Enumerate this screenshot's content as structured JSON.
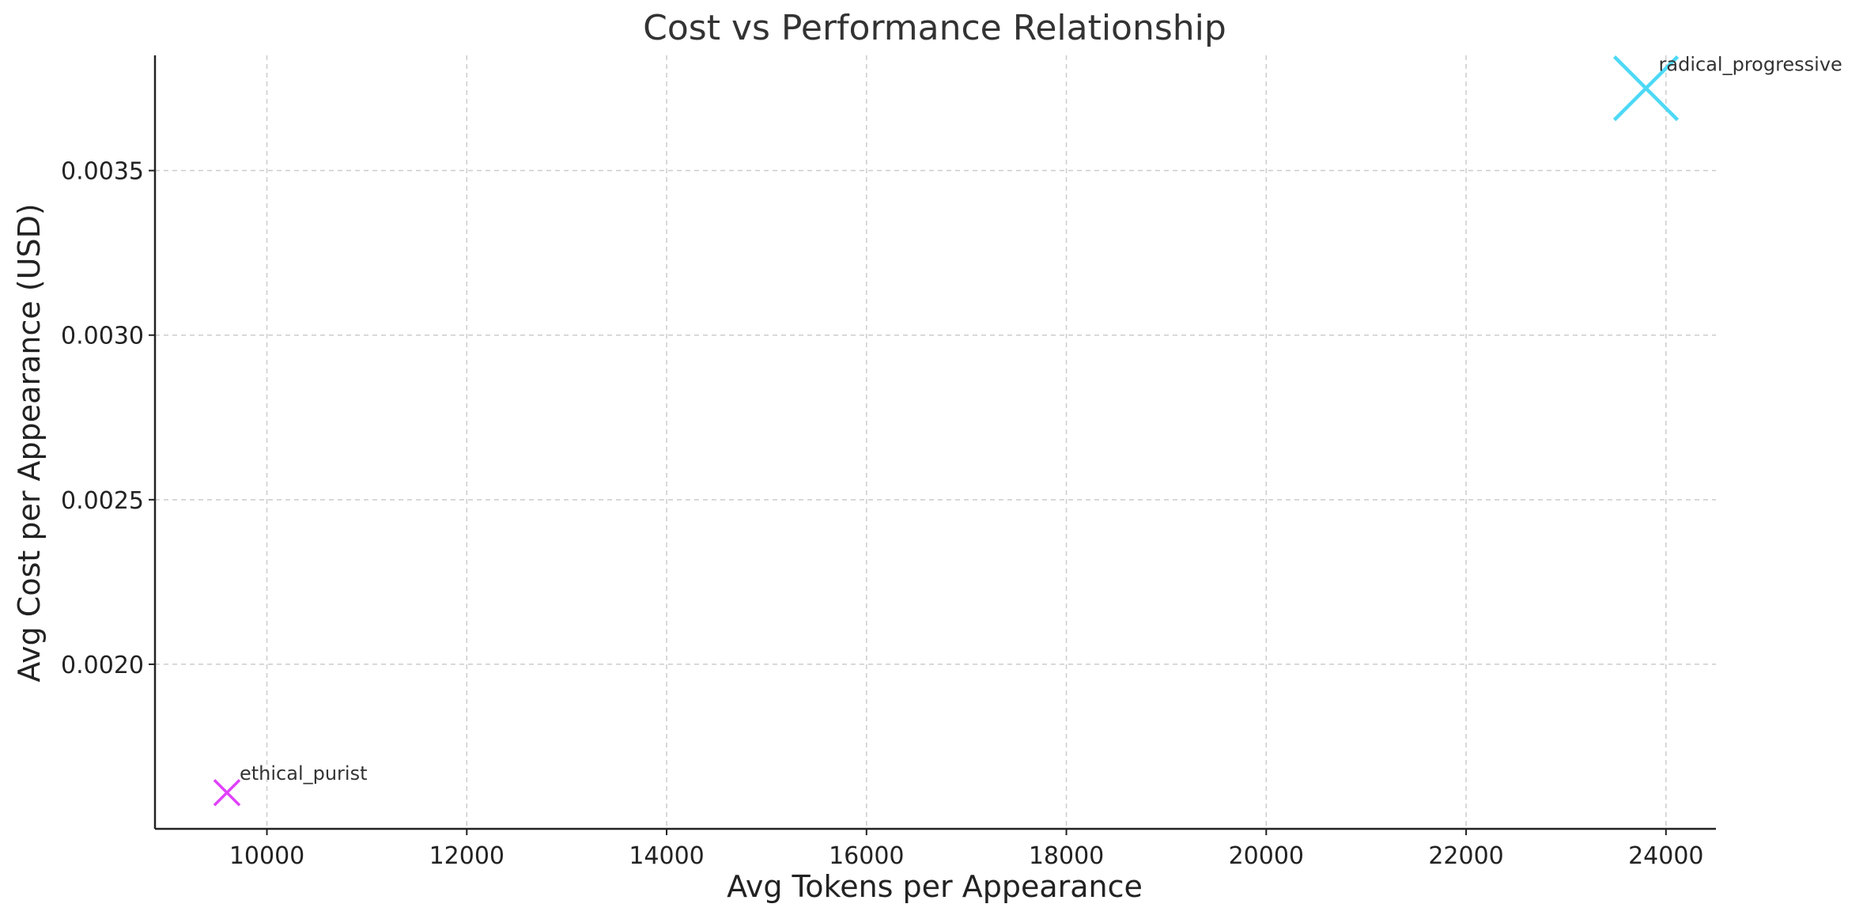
{
  "chart_data": {
    "type": "scatter",
    "title": "Cost vs Performance Relationship",
    "xlabel": "Avg Tokens per Appearance",
    "ylabel": "Avg Cost per Appearance (USD)",
    "xlim": [
      8880,
      24500
    ],
    "ylim": [
      0.0015,
      0.00385
    ],
    "xticks": [
      10000,
      12000,
      14000,
      16000,
      18000,
      20000,
      22000,
      24000
    ],
    "yticks": [
      0.002,
      0.0025,
      0.003,
      0.0035
    ],
    "ytick_labels": [
      "0.0020",
      "0.0025",
      "0.0030",
      "0.0035"
    ],
    "grid": true,
    "marker": "x",
    "points": [
      {
        "label": "ethical_purist",
        "x": 9600,
        "y": 0.00161,
        "color": "#e040fb",
        "size": "small"
      },
      {
        "label": "radical_progressive",
        "x": 23800,
        "y": 0.00375,
        "color": "#4dd9f5",
        "size": "large"
      }
    ]
  }
}
